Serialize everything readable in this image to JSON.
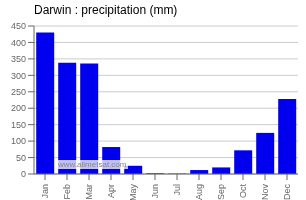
{
  "chart_data": {
    "type": "bar",
    "title": "Darwin : precipitation (mm)",
    "categories": [
      "Jan",
      "Feb",
      "Mar",
      "Apr",
      "May",
      "Jun",
      "Jul",
      "Aug",
      "Sep",
      "Oct",
      "Nov",
      "Dec"
    ],
    "values": [
      430,
      338,
      336,
      82,
      25,
      2,
      1,
      12,
      20,
      72,
      125,
      228
    ],
    "color": "#0000ee",
    "ylim": [
      0,
      450
    ],
    "yticks": [
      0,
      50,
      100,
      150,
      200,
      250,
      300,
      350,
      400,
      450
    ],
    "grid": true,
    "annotations": [
      "www.allmetsat.com"
    ]
  }
}
